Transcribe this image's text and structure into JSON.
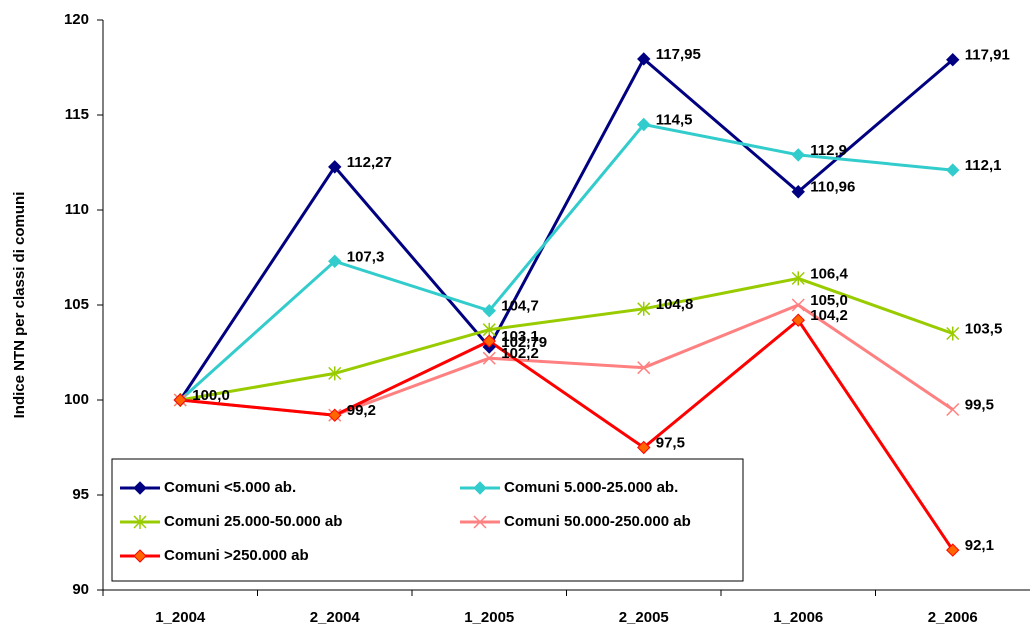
{
  "chart_data": {
    "type": "line",
    "y_label": "Indice NTN per classi di comuni",
    "categories": [
      "1_2004",
      "2_2004",
      "1_2005",
      "2_2005",
      "1_2006",
      "2_2006"
    ],
    "ylim": [
      90,
      120
    ],
    "yticks": [
      90,
      95,
      100,
      105,
      110,
      115,
      120
    ],
    "series": [
      {
        "name": "Comuni <5.000 ab.",
        "color": "#000080",
        "marker": "diamond",
        "values": [
          100,
          112.27,
          102.79,
          117.95,
          110.96,
          117.91
        ],
        "value_labels": [
          null,
          "112,27",
          "102,79",
          "117,95",
          "110,96",
          "117,91"
        ]
      },
      {
        "name": "Comuni 5.000-25.000 ab.",
        "color": "#33cccc",
        "marker": "diamond",
        "values": [
          100,
          107.3,
          104.7,
          114.5,
          112.9,
          112.1
        ],
        "value_labels": [
          null,
          "107,3",
          "104,7",
          "114,5",
          "112,9",
          "112,1"
        ]
      },
      {
        "name": "Comuni 25.000-50.000 ab",
        "color": "#99cc00",
        "marker": "asterisk",
        "values": [
          100,
          101.4,
          103.7,
          104.8,
          106.4,
          103.5
        ],
        "value_labels": [
          null,
          null,
          null,
          "104,8",
          "106,4",
          "103,5"
        ]
      },
      {
        "name": "Comuni 50.000-250.000 ab",
        "color": "#ff8080",
        "marker": "x",
        "values": [
          100,
          99.2,
          102.2,
          101.7,
          105.0,
          99.5
        ],
        "value_labels": [
          null,
          null,
          "102,2",
          null,
          "105,0",
          "99,5"
        ]
      },
      {
        "name": "Comuni >250.000 ab",
        "color": "#ff0000",
        "marker": "diamond",
        "values": [
          100,
          99.2,
          103.1,
          97.5,
          104.2,
          92.1
        ],
        "value_labels": [
          "100,0",
          "99,2",
          "103,1",
          "97,5",
          "104,2",
          "92,1"
        ]
      }
    ]
  }
}
